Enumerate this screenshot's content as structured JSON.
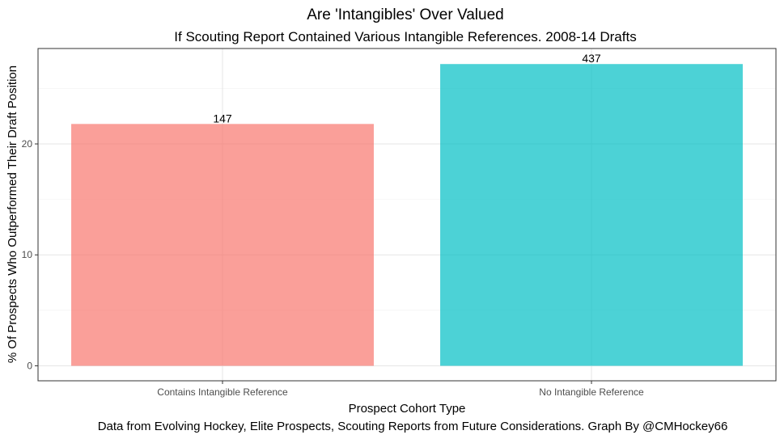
{
  "chart_data": {
    "type": "bar",
    "title": "Are 'Intangibles' Over Valued",
    "subtitle": "If Scouting Report Contained Various Intangible References. 2008-14 Drafts",
    "xlabel": "Prospect Cohort Type",
    "ylabel": "% Of Prospects Who Outperformed Their Draft Position",
    "caption": "Data from Evolving Hockey, Elite Prospects, Scouting Reports from Future Considerations. Graph By @CMHockey66",
    "categories": [
      "Contains Intangible Reference",
      "No Intangible Reference"
    ],
    "values": [
      21.8,
      27.2
    ],
    "data_labels": [
      "147",
      "437"
    ],
    "colors": [
      "#F8766D",
      "#00BFC4"
    ],
    "bar_opacity": 0.7,
    "ylim": [
      -1.35,
      28.6
    ],
    "yticks": [
      0,
      10,
      20
    ],
    "grid": true,
    "legend": "none"
  }
}
